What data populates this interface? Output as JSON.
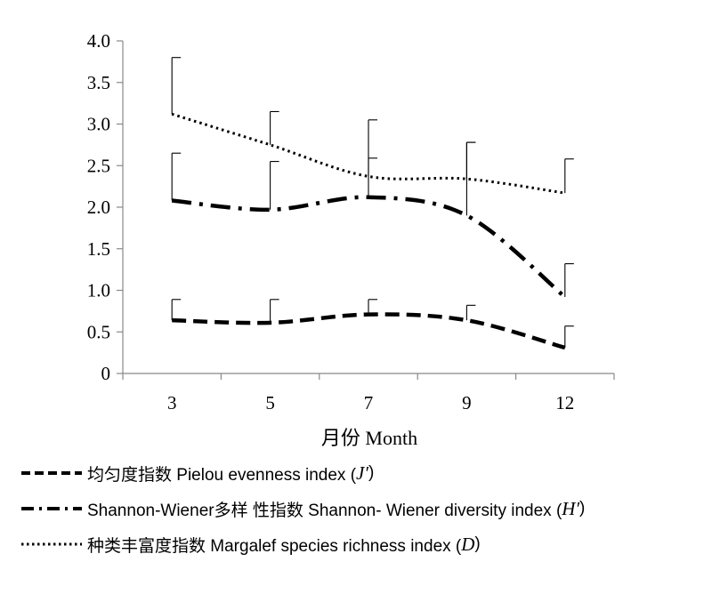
{
  "chart_data": {
    "type": "line",
    "xlabel": "月份 Month",
    "ylabel": "",
    "categories": [
      "3",
      "5",
      "7",
      "9",
      "12"
    ],
    "ylim": [
      0,
      4.0
    ],
    "yticks": [
      "0",
      "0.5",
      "1.0",
      "1.5",
      "2.0",
      "2.5",
      "3.0",
      "3.5",
      "4.0"
    ],
    "grid": false,
    "legend_position": "bottom",
    "series": [
      {
        "name": "均匀度指数 Pielou evenness index (J′)",
        "name_text": "均匀度指数  Pielou evenness  index (",
        "mark": "J′",
        "close": ")",
        "line_style": "dashed",
        "values": [
          0.64,
          0.61,
          0.71,
          0.64,
          0.31
        ],
        "error": [
          0.25,
          0.28,
          0.18,
          0.18,
          0.26
        ]
      },
      {
        "name": "Shannon-Wiener多样 性指数 Shannon- Wiener diversity index (H′)",
        "name_text": "Shannon-Wiener多样 性指数  Shannon- Wiener diversity  index (",
        "mark": "H′",
        "close": ")",
        "line_style": "dash-dot",
        "values": [
          2.08,
          1.97,
          2.12,
          1.9,
          0.92
        ],
        "error": [
          0.57,
          0.58,
          0.47,
          0.88,
          0.4
        ]
      },
      {
        "name": "种类丰富度指数 Margalef species richness index (D)",
        "name_text": "种类丰富度指数  Margalef species  richness index (",
        "mark": "D",
        "close": ")",
        "line_style": "dotted",
        "values": [
          3.12,
          2.75,
          2.37,
          2.34,
          2.17
        ],
        "error": [
          0.68,
          0.4,
          0.68,
          0.44,
          0.41
        ]
      }
    ]
  }
}
